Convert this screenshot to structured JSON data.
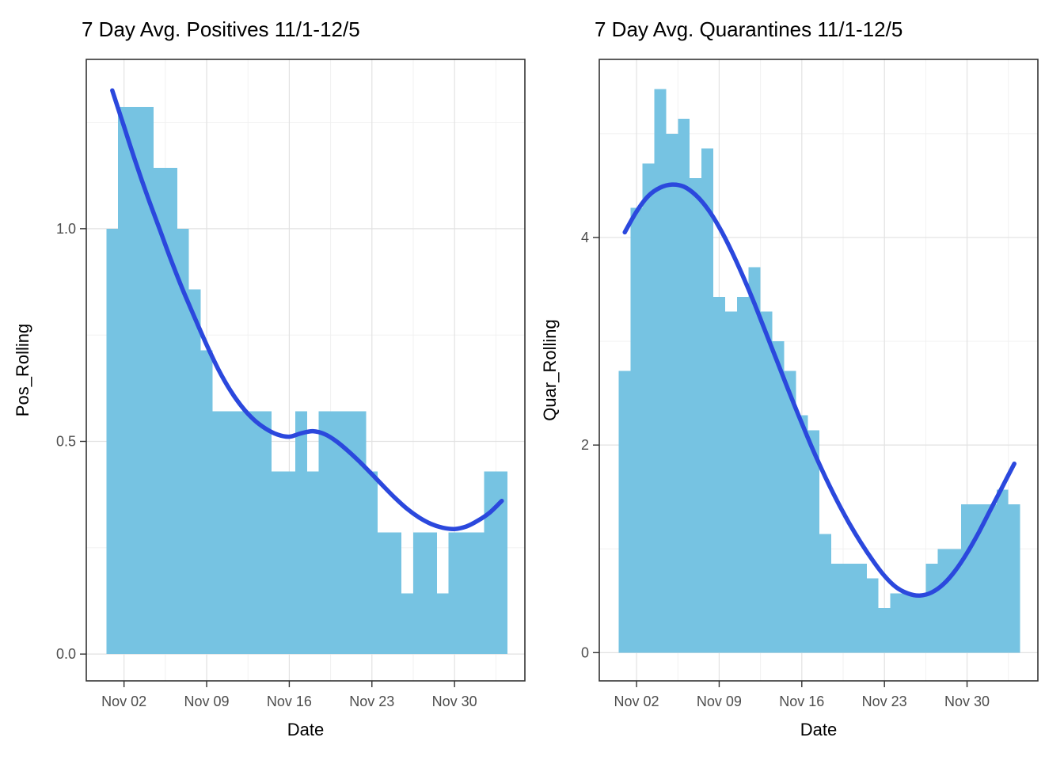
{
  "figure": {
    "background_color": "#ffffff",
    "panel_background": "#ffffff",
    "panel_border_color": "#333333",
    "grid_major_color": "#e2e2e2",
    "grid_minor_color": "#f0f0f0",
    "tick_mark_color": "#333333",
    "tick_label_color": "#4d4d4d"
  },
  "chart_data": [
    {
      "type": "bar",
      "title": "7 Day Avg. Positives 11/1-12/5",
      "xlabel": "Date",
      "ylabel": "Pos_Rolling",
      "legend": "none",
      "grid": "on",
      "bar_color": "#76c3e2",
      "smooth_line_color": "#2b48dd",
      "ylim": [
        -0.063,
        1.398
      ],
      "y_ticks": [
        {
          "v": 0.0,
          "label": "0.0"
        },
        {
          "v": 0.5,
          "label": "0.5"
        },
        {
          "v": 1.0,
          "label": "1.0"
        }
      ],
      "y_minor": [
        0.25,
        0.75,
        1.25
      ],
      "x_ticks": [
        {
          "i": 1,
          "label": "Nov 02"
        },
        {
          "i": 8,
          "label": "Nov 09"
        },
        {
          "i": 15,
          "label": "Nov 16"
        },
        {
          "i": 22,
          "label": "Nov 23"
        },
        {
          "i": 29,
          "label": "Nov 30"
        }
      ],
      "x_minor": [
        4.5,
        11.5,
        18.5,
        25.5,
        32.5
      ],
      "categories": [
        "Nov 01",
        "Nov 02",
        "Nov 03",
        "Nov 04",
        "Nov 05",
        "Nov 06",
        "Nov 07",
        "Nov 08",
        "Nov 09",
        "Nov 10",
        "Nov 11",
        "Nov 12",
        "Nov 13",
        "Nov 14",
        "Nov 15",
        "Nov 16",
        "Nov 17",
        "Nov 18",
        "Nov 19",
        "Nov 20",
        "Nov 21",
        "Nov 22",
        "Nov 23",
        "Nov 24",
        "Nov 25",
        "Nov 26",
        "Nov 27",
        "Nov 28",
        "Nov 29",
        "Nov 30",
        "Dec 01",
        "Dec 02",
        "Dec 03",
        "Dec 04"
      ],
      "values": [
        1.0,
        1.286,
        1.286,
        1.286,
        1.143,
        1.143,
        1.0,
        0.857,
        0.714,
        0.571,
        0.571,
        0.571,
        0.571,
        0.571,
        0.429,
        0.429,
        0.571,
        0.429,
        0.571,
        0.571,
        0.571,
        0.571,
        0.429,
        0.286,
        0.286,
        0.143,
        0.286,
        0.286,
        0.143,
        0.286,
        0.286,
        0.286,
        0.429,
        0.429
      ],
      "smooth_line": [
        1.325,
        1.24,
        1.155,
        1.075,
        1.0,
        0.925,
        0.855,
        0.79,
        0.727,
        0.669,
        0.62,
        0.581,
        0.551,
        0.53,
        0.516,
        0.511,
        0.519,
        0.524,
        0.517,
        0.5,
        0.477,
        0.451,
        0.423,
        0.394,
        0.366,
        0.341,
        0.321,
        0.306,
        0.297,
        0.294,
        0.3,
        0.314,
        0.333,
        0.36
      ]
    },
    {
      "type": "bar",
      "title": "7 Day Avg. Quarantines 11/1-12/5",
      "xlabel": "Date",
      "ylabel": "Quar_Rolling",
      "legend": "none",
      "grid": "on",
      "bar_color": "#76c3e2",
      "smooth_line_color": "#2b48dd",
      "ylim": [
        -0.272,
        5.716
      ],
      "y_ticks": [
        {
          "v": 0,
          "label": "0"
        },
        {
          "v": 2,
          "label": "2"
        },
        {
          "v": 4,
          "label": "4"
        }
      ],
      "y_minor": [
        1,
        3,
        5
      ],
      "x_ticks": [
        {
          "i": 1,
          "label": "Nov 02"
        },
        {
          "i": 8,
          "label": "Nov 09"
        },
        {
          "i": 15,
          "label": "Nov 16"
        },
        {
          "i": 22,
          "label": "Nov 23"
        },
        {
          "i": 29,
          "label": "Nov 30"
        }
      ],
      "x_minor": [
        4.5,
        11.5,
        18.5,
        25.5,
        32.5
      ],
      "categories": [
        "Nov 01",
        "Nov 02",
        "Nov 03",
        "Nov 04",
        "Nov 05",
        "Nov 06",
        "Nov 07",
        "Nov 08",
        "Nov 09",
        "Nov 10",
        "Nov 11",
        "Nov 12",
        "Nov 13",
        "Nov 14",
        "Nov 15",
        "Nov 16",
        "Nov 17",
        "Nov 18",
        "Nov 19",
        "Nov 20",
        "Nov 21",
        "Nov 22",
        "Nov 23",
        "Nov 24",
        "Nov 25",
        "Nov 26",
        "Nov 27",
        "Nov 28",
        "Nov 29",
        "Nov 30",
        "Dec 01",
        "Dec 02",
        "Dec 03",
        "Dec 04"
      ],
      "values": [
        2.714,
        4.286,
        4.714,
        5.429,
        5.0,
        5.143,
        4.571,
        4.857,
        3.429,
        3.286,
        3.429,
        3.714,
        3.286,
        3.0,
        2.714,
        2.286,
        2.143,
        1.143,
        0.857,
        0.857,
        0.857,
        0.714,
        0.429,
        0.571,
        0.571,
        0.571,
        0.857,
        1.0,
        1.0,
        1.429,
        1.429,
        1.429,
        1.571,
        1.429
      ],
      "smooth_line": [
        4.05,
        4.25,
        4.4,
        4.48,
        4.51,
        4.49,
        4.41,
        4.28,
        4.1,
        3.88,
        3.63,
        3.36,
        3.07,
        2.78,
        2.49,
        2.21,
        1.94,
        1.69,
        1.46,
        1.25,
        1.06,
        0.89,
        0.74,
        0.63,
        0.57,
        0.55,
        0.58,
        0.66,
        0.79,
        0.96,
        1.16,
        1.38,
        1.6,
        1.82
      ]
    }
  ]
}
